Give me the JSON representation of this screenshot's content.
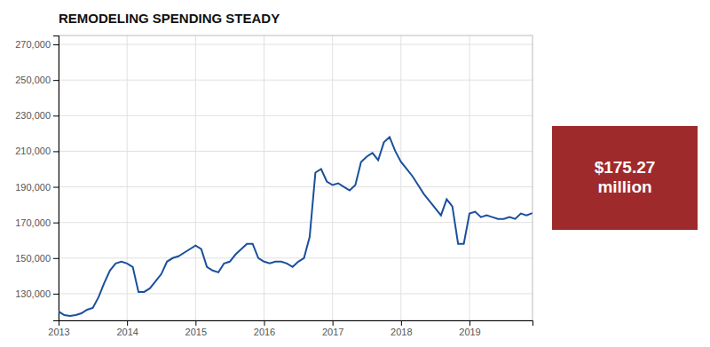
{
  "chart_data": {
    "type": "line",
    "title": "REMODELING SPENDING STEADY",
    "color": "#1a4f9d",
    "grid": true,
    "annotations": [
      {
        "text": "$175.27\nmillion",
        "color": "#9e2a2b"
      }
    ],
    "xlim": [
      2013.0,
      2019.92
    ],
    "xticks": [
      2013,
      2014,
      2015,
      2016,
      2017,
      2018,
      2019
    ],
    "ylim": [
      115000,
      275000
    ],
    "yticks": [
      {
        "value": 130000,
        "label": "130,000"
      },
      {
        "value": 150000,
        "label": "150,000"
      },
      {
        "value": 170000,
        "label": "170,000"
      },
      {
        "value": 190000,
        "label": "190,000"
      },
      {
        "value": 210000,
        "label": "210,000"
      },
      {
        "value": 230000,
        "label": "230,000"
      },
      {
        "value": 250000,
        "label": "250,000"
      },
      {
        "value": 270000,
        "label": "270,000"
      }
    ],
    "x": [
      2013.0,
      2013.0833333333333,
      2013.1666666666667,
      2013.25,
      2013.3333333333333,
      2013.4166666666667,
      2013.5,
      2013.5833333333333,
      2013.6666666666667,
      2013.75,
      2013.8333333333333,
      2013.9166666666667,
      2014.0,
      2014.0833333333333,
      2014.1666666666667,
      2014.25,
      2014.3333333333333,
      2014.4166666666667,
      2014.5,
      2014.5833333333333,
      2014.6666666666667,
      2014.75,
      2014.8333333333333,
      2014.9166666666667,
      2015.0,
      2015.0833333333333,
      2015.1666666666667,
      2015.25,
      2015.3333333333333,
      2015.4166666666667,
      2015.5,
      2015.5833333333333,
      2015.6666666666667,
      2015.75,
      2015.8333333333333,
      2015.9166666666667,
      2016.0,
      2016.0833333333333,
      2016.1666666666667,
      2016.25,
      2016.3333333333333,
      2016.4166666666667,
      2016.5,
      2016.5833333333333,
      2016.6666666666667,
      2016.75,
      2016.8333333333333,
      2016.9166666666667,
      2017.0,
      2017.0833333333333,
      2017.1666666666667,
      2017.25,
      2017.3333333333333,
      2017.4166666666667,
      2017.5,
      2017.5833333333333,
      2017.6666666666667,
      2017.75,
      2017.8333333333333,
      2017.9166666666667,
      2018.0,
      2018.0833333333333,
      2018.1666666666667,
      2018.25,
      2018.3333333333333,
      2018.4166666666667,
      2018.5,
      2018.5833333333333,
      2018.6666666666667,
      2018.75,
      2018.8333333333333,
      2018.9166666666667,
      2019.0,
      2019.0833333333333,
      2019.1666666666667,
      2019.25,
      2019.3333333333333,
      2019.4166666666667,
      2019.5,
      2019.5833333333333,
      2019.6666666666667,
      2019.75,
      2019.8333333333333,
      2019.9166666666667
    ],
    "values": [
      120000,
      118000,
      117500,
      118000,
      119000,
      121000,
      122000,
      128000,
      136000,
      143000,
      147000,
      148000,
      147000,
      145000,
      131000,
      131000,
      133000,
      137000,
      141000,
      148000,
      150000,
      151000,
      153000,
      155000,
      157000,
      155000,
      145000,
      143000,
      142000,
      147000,
      148000,
      152000,
      155000,
      158000,
      158000,
      150000,
      148000,
      147000,
      148000,
      148000,
      147000,
      145000,
      148000,
      150000,
      162000,
      198000,
      200000,
      193000,
      191000,
      192000,
      190000,
      188000,
      191000,
      204000,
      207000,
      209000,
      205000,
      215000,
      218000,
      210000,
      204000,
      200000,
      196000,
      191000,
      186000,
      182000,
      178000,
      174000,
      183000,
      179000,
      158000,
      158000,
      175000,
      176000,
      173000,
      174000,
      173000,
      172000,
      172000,
      173000,
      172000,
      175000,
      174000,
      175270
    ]
  }
}
